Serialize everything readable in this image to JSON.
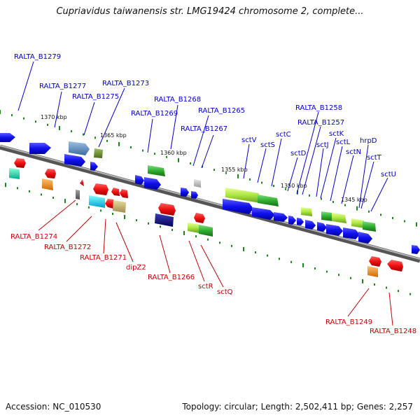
{
  "header": {
    "title": "Cupriavidus taiwanensis str. LMG19424 chromosome 2, complete..."
  },
  "footer": {
    "accession": "Accession: NC_010530",
    "summary": "Topology: circular; Length: 2,502,411 bp; Genes: 2,257"
  },
  "colors": {
    "upper_label": "#0000cc",
    "lower_label": "#cc0000",
    "backbone": "#7a7a7a",
    "tick": "#1a8a1a"
  },
  "scale_labels": [
    "1370 kbp",
    "1365 kbp",
    "1360 kbp",
    "1355 kbp",
    "1350 kbp",
    "1345 kbp"
  ],
  "upper_labels": [
    "RALTA_B1279",
    "RALTA_B1277",
    "RALTA_B1275",
    "RALTA_B1273",
    "RALTA_B1268",
    "RALTA_B1269",
    "RALTA_B1265",
    "RALTA_B1267",
    "RALTA_B1258",
    "RALTA_B1257",
    "sctV",
    "sctS",
    "sctC",
    "sctD",
    "sctJ",
    "sctK",
    "sctL",
    "sctN",
    "hrpD",
    "sctT",
    "sctU"
  ],
  "lower_labels": [
    "RALTA_B1274",
    "RALTA_B1272",
    "RALTA_B1271",
    "dipZ2",
    "RALTA_B1266",
    "sctR",
    "sctQ",
    "RALTA_B1249",
    "RALTA_B1248"
  ]
}
